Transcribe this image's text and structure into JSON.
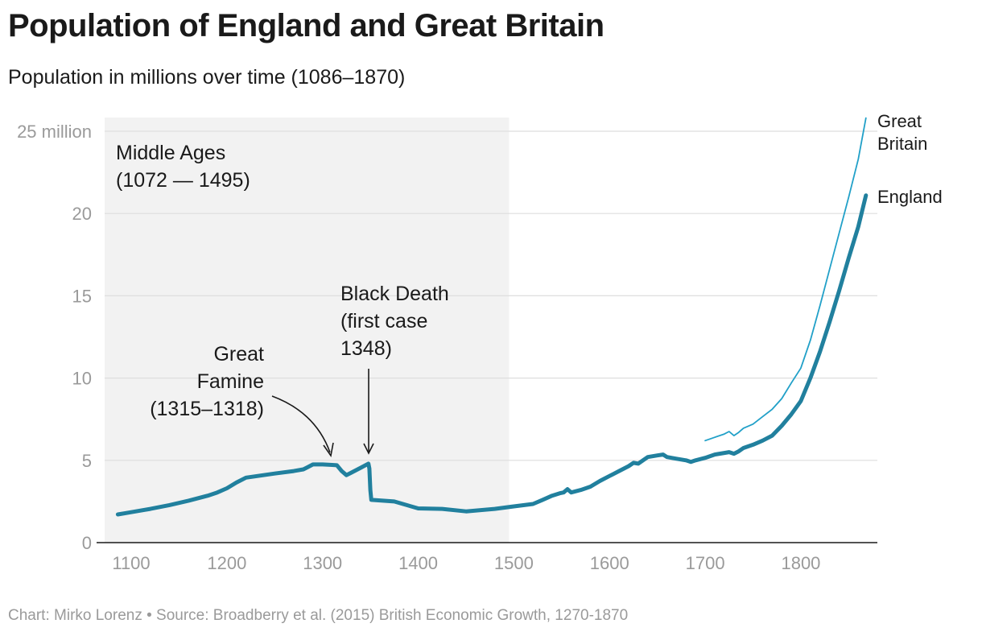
{
  "chart_data": {
    "type": "line",
    "title": "Population of England and Great Britain",
    "subtitle": "Population in millions over time (1086–1870)",
    "footer": "Chart: Mirko Lorenz • Source: Broadberry et al. (2015) British Economic Growth, 1270-1870",
    "xlim": [
      1075,
      1890
    ],
    "ylim": [
      0,
      25
    ],
    "x_ticks": [
      "1100",
      "1200",
      "1300",
      "1400",
      "1500",
      "1600",
      "1700",
      "1800"
    ],
    "y_ticks": [
      "0",
      "5",
      "10",
      "15",
      "20",
      "25 million"
    ],
    "shaded_period": {
      "label_line1": "Middle Ages",
      "label_line2": "(1072 — 1495)",
      "x_start": 1072,
      "x_end": 1495
    },
    "annotations": {
      "famine": {
        "lines": [
          "Great",
          "Famine",
          "(1315–1318)"
        ],
        "x": 1313,
        "y": 4.6
      },
      "black_death": {
        "lines": [
          "Black Death",
          "(first case",
          "1348)"
        ],
        "x": 1351,
        "y": 4.8
      }
    },
    "series": [
      {
        "name": "England",
        "label": "England",
        "color": "#21809e",
        "points": [
          [
            1086,
            1.71
          ],
          [
            1100,
            1.85
          ],
          [
            1120,
            2.05
          ],
          [
            1140,
            2.28
          ],
          [
            1160,
            2.55
          ],
          [
            1180,
            2.85
          ],
          [
            1190,
            3.05
          ],
          [
            1200,
            3.3
          ],
          [
            1210,
            3.65
          ],
          [
            1220,
            3.95
          ],
          [
            1250,
            4.2
          ],
          [
            1270,
            4.35
          ],
          [
            1280,
            4.45
          ],
          [
            1290,
            4.75
          ],
          [
            1300,
            4.75
          ],
          [
            1310,
            4.72
          ],
          [
            1315,
            4.7
          ],
          [
            1320,
            4.35
          ],
          [
            1325,
            4.1
          ],
          [
            1330,
            4.25
          ],
          [
            1340,
            4.55
          ],
          [
            1348,
            4.8
          ],
          [
            1349,
            4.5
          ],
          [
            1350,
            3.2
          ],
          [
            1351,
            2.6
          ],
          [
            1375,
            2.5
          ],
          [
            1400,
            2.08
          ],
          [
            1425,
            2.05
          ],
          [
            1450,
            1.9
          ],
          [
            1480,
            2.05
          ],
          [
            1500,
            2.2
          ],
          [
            1520,
            2.35
          ],
          [
            1530,
            2.6
          ],
          [
            1540,
            2.85
          ],
          [
            1548,
            3.0
          ],
          [
            1552,
            3.05
          ],
          [
            1556,
            3.25
          ],
          [
            1560,
            3.05
          ],
          [
            1570,
            3.2
          ],
          [
            1580,
            3.4
          ],
          [
            1590,
            3.75
          ],
          [
            1600,
            4.05
          ],
          [
            1610,
            4.35
          ],
          [
            1620,
            4.65
          ],
          [
            1625,
            4.85
          ],
          [
            1630,
            4.8
          ],
          [
            1635,
            5.0
          ],
          [
            1640,
            5.2
          ],
          [
            1650,
            5.3
          ],
          [
            1656,
            5.35
          ],
          [
            1660,
            5.2
          ],
          [
            1670,
            5.1
          ],
          [
            1680,
            5.0
          ],
          [
            1685,
            4.9
          ],
          [
            1690,
            5.0
          ],
          [
            1700,
            5.15
          ],
          [
            1710,
            5.35
          ],
          [
            1720,
            5.45
          ],
          [
            1725,
            5.5
          ],
          [
            1730,
            5.4
          ],
          [
            1735,
            5.55
          ],
          [
            1740,
            5.75
          ],
          [
            1750,
            5.95
          ],
          [
            1760,
            6.2
          ],
          [
            1770,
            6.5
          ],
          [
            1780,
            7.1
          ],
          [
            1790,
            7.8
          ],
          [
            1800,
            8.6
          ],
          [
            1810,
            10.0
          ],
          [
            1820,
            11.6
          ],
          [
            1830,
            13.4
          ],
          [
            1840,
            15.3
          ],
          [
            1850,
            17.3
          ],
          [
            1860,
            19.2
          ],
          [
            1868,
            21.1
          ]
        ]
      },
      {
        "name": "Great Britain",
        "label_line1": "Great",
        "label_line2": "Britain",
        "color": "#21a0c8",
        "points": [
          [
            1700,
            6.2
          ],
          [
            1710,
            6.4
          ],
          [
            1720,
            6.6
          ],
          [
            1725,
            6.75
          ],
          [
            1730,
            6.5
          ],
          [
            1735,
            6.7
          ],
          [
            1740,
            6.95
          ],
          [
            1750,
            7.2
          ],
          [
            1760,
            7.65
          ],
          [
            1770,
            8.1
          ],
          [
            1780,
            8.75
          ],
          [
            1790,
            9.7
          ],
          [
            1800,
            10.6
          ],
          [
            1810,
            12.3
          ],
          [
            1820,
            14.4
          ],
          [
            1830,
            16.6
          ],
          [
            1840,
            18.8
          ],
          [
            1850,
            21.0
          ],
          [
            1860,
            23.3
          ],
          [
            1868,
            25.8
          ]
        ]
      }
    ]
  }
}
